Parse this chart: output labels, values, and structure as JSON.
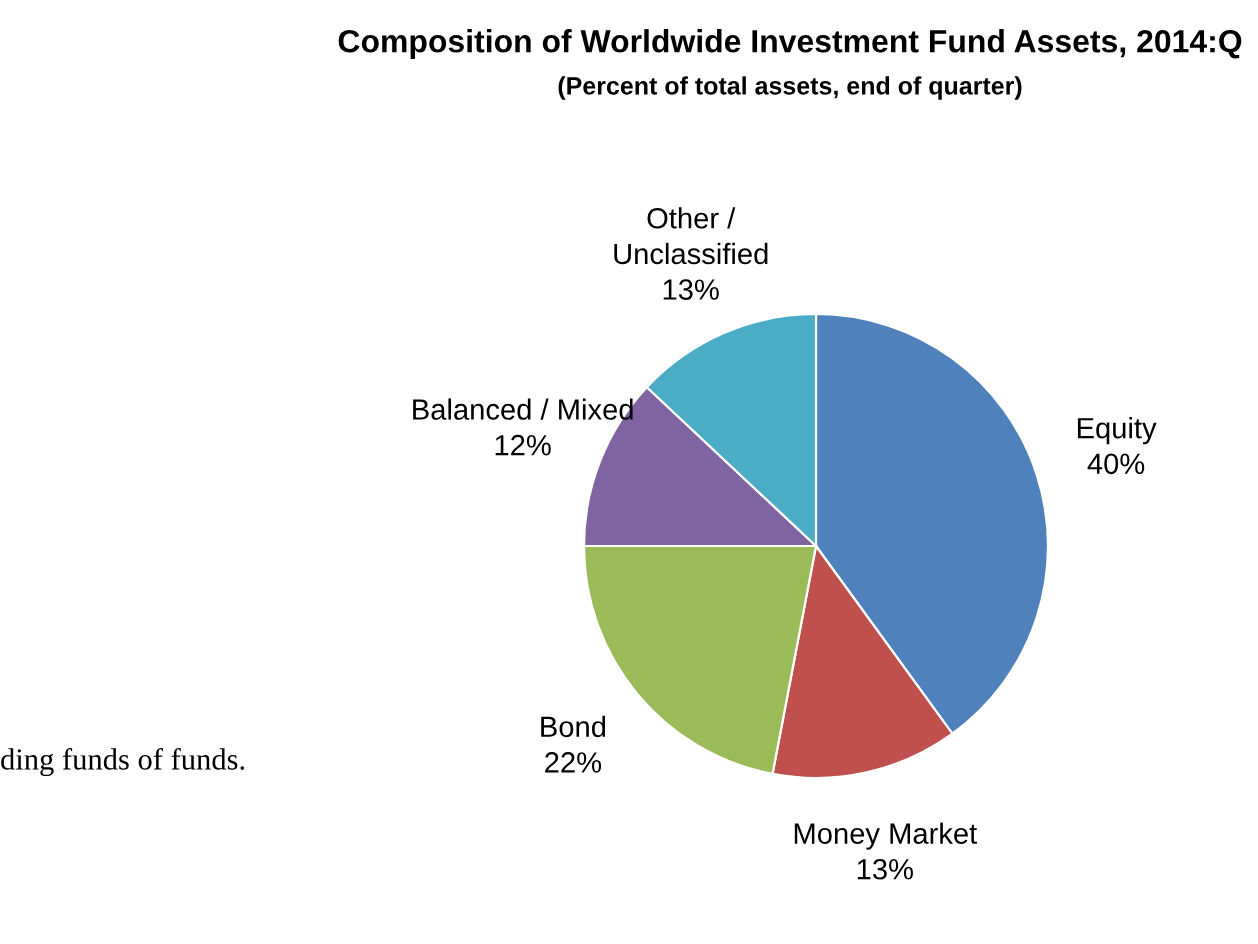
{
  "chart_data": {
    "type": "pie",
    "title": "Composition of Worldwide Investment Fund Assets, 2014:Q",
    "subtitle": "(Percent of total assets, end of quarter)",
    "categories": [
      "Equity",
      "Money Market",
      "Bond",
      "Balanced / Mixed",
      "Other /\nUnclassified"
    ],
    "values": [
      40,
      13,
      22,
      12,
      13
    ],
    "value_labels": [
      "40%",
      "13%",
      "22%",
      "12%",
      "13%"
    ],
    "colors": [
      "#4f81bd",
      "#c0504d",
      "#9bbb59",
      "#8064a2",
      "#4bacc6"
    ],
    "annotations": [
      "ding funds of funds."
    ],
    "legend": false
  }
}
